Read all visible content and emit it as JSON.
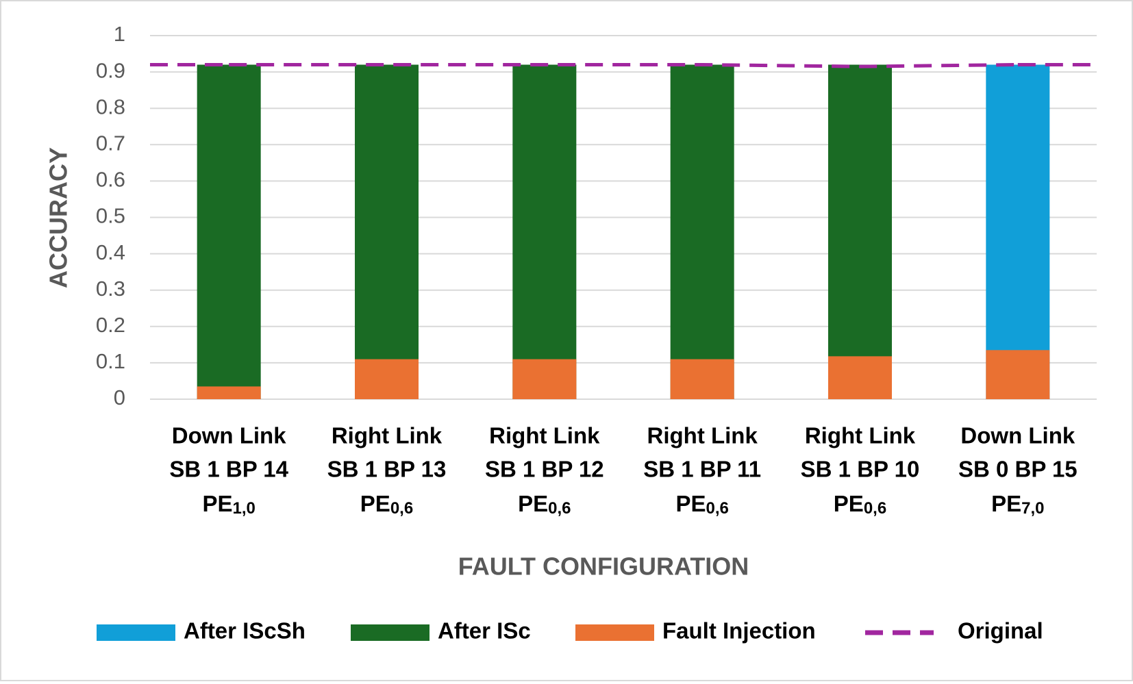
{
  "chart_data": {
    "type": "bar",
    "ylabel": "ACCURACY",
    "xlabel": "FAULT CONFIGURATION",
    "categories": [
      [
        "Down Link",
        "SB 1 BP 14",
        "PE",
        "1,0"
      ],
      [
        "Right Link",
        "SB 1 BP 13",
        "PE",
        "0,6"
      ],
      [
        "Right Link",
        "SB 1 BP 12",
        "PE",
        "0,6"
      ],
      [
        "Right Link",
        "SB 1 BP 11",
        "PE",
        "0,6"
      ],
      [
        "Right Link",
        "SB 1 BP 10",
        "PE",
        "0,6"
      ],
      [
        "Down Link",
        "SB 0 BP 15",
        "PE",
        "7,0"
      ]
    ],
    "series": [
      {
        "name": "After IScSh",
        "color": "#119fd8",
        "type": "bar",
        "values": [
          null,
          null,
          null,
          null,
          null,
          0.92
        ]
      },
      {
        "name": "After ISc",
        "color": "#1a6b24",
        "type": "bar",
        "values": [
          0.92,
          0.92,
          0.92,
          0.92,
          0.92,
          null
        ]
      },
      {
        "name": "Fault Injection",
        "color": "#ea7132",
        "type": "bar",
        "values": [
          0.035,
          0.11,
          0.11,
          0.11,
          0.118,
          0.135
        ]
      },
      {
        "name": "Original",
        "color": "#a1269f",
        "type": "line",
        "dashed": true,
        "values": [
          0.92,
          0.92,
          0.92,
          0.92,
          0.915,
          0.92
        ]
      }
    ],
    "ylim": [
      0,
      1
    ],
    "yticks": [
      0,
      0.1,
      0.2,
      0.3,
      0.4,
      0.5,
      0.6,
      0.7,
      0.8,
      0.9,
      1
    ],
    "grid": true,
    "legend": "bottom"
  }
}
